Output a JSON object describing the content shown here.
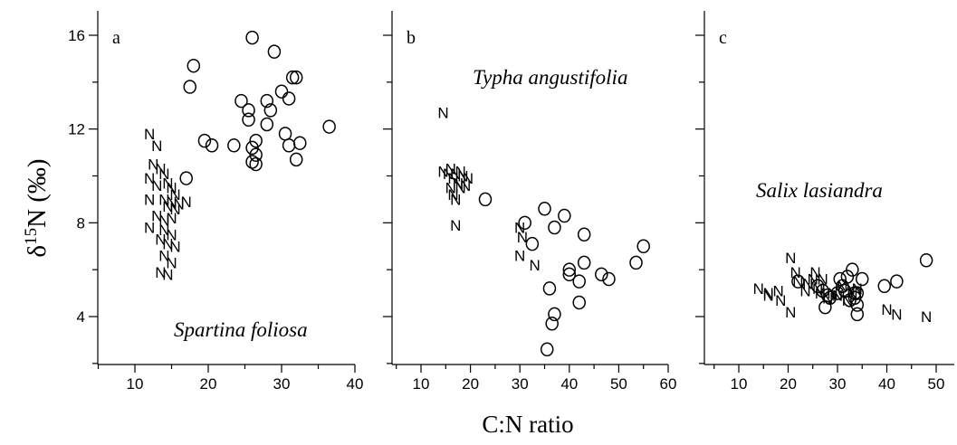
{
  "chart_data": {
    "type": "scatter",
    "ylabel": "δ15N (‰)",
    "xlabel": "C:N ratio",
    "ylim": [
      2,
      17
    ],
    "yticks": [
      4,
      8,
      12,
      16
    ],
    "panels": [
      {
        "letter": "a",
        "species": "Spartina foliosa",
        "xlim": [
          5,
          40
        ],
        "xticks": [
          10,
          20,
          30,
          40
        ],
        "series": [
          {
            "marker": "N",
            "points": [
              [
                12,
                11.8
              ],
              [
                13,
                11.3
              ],
              [
                12.5,
                10.5
              ],
              [
                13.5,
                10.3
              ],
              [
                14,
                10.1
              ],
              [
                12,
                9.9
              ],
              [
                13,
                9.6
              ],
              [
                14.5,
                9.7
              ],
              [
                15,
                9.5
              ],
              [
                15.5,
                9.2
              ],
              [
                12,
                9.0
              ],
              [
                14,
                9.0
              ],
              [
                14.5,
                8.7
              ],
              [
                15,
                8.9
              ],
              [
                15.5,
                8.6
              ],
              [
                16,
                8.8
              ],
              [
                17,
                8.9
              ],
              [
                13,
                8.3
              ],
              [
                14,
                8.1
              ],
              [
                15,
                8.2
              ],
              [
                12,
                7.8
              ],
              [
                14,
                7.7
              ],
              [
                15,
                7.5
              ],
              [
                13.5,
                7.3
              ],
              [
                14.5,
                7.1
              ],
              [
                15.5,
                7.0
              ],
              [
                14,
                6.6
              ],
              [
                15,
                6.3
              ],
              [
                13.5,
                5.9
              ],
              [
                14.5,
                5.8
              ]
            ]
          },
          {
            "marker": "O",
            "points": [
              [
                18,
                14.7
              ],
              [
                17.5,
                13.8
              ],
              [
                17,
                9.9
              ],
              [
                19.5,
                11.5
              ],
              [
                20.5,
                11.3
              ],
              [
                23.5,
                11.3
              ],
              [
                24.5,
                13.2
              ],
              [
                25.5,
                12.8
              ],
              [
                25.5,
                12.4
              ],
              [
                26,
                15.9
              ],
              [
                26.5,
                11.5
              ],
              [
                26,
                11.2
              ],
              [
                26.5,
                10.9
              ],
              [
                26,
                10.6
              ],
              [
                26.5,
                10.5
              ],
              [
                28,
                13.2
              ],
              [
                28,
                12.2
              ],
              [
                28.5,
                12.8
              ],
              [
                29,
                15.3
              ],
              [
                30,
                13.6
              ],
              [
                30.5,
                11.8
              ],
              [
                31,
                11.3
              ],
              [
                31,
                13.3
              ],
              [
                31.5,
                14.2
              ],
              [
                32,
                14.2
              ],
              [
                32,
                10.7
              ],
              [
                32.5,
                11.4
              ],
              [
                36.5,
                12.1
              ]
            ]
          }
        ]
      },
      {
        "letter": "b",
        "species": "Typha angustifolia",
        "xlim": [
          5,
          60
        ],
        "xticks": [
          10,
          20,
          30,
          40,
          50,
          60
        ],
        "series": [
          {
            "marker": "N",
            "points": [
              [
                14.5,
                12.7
              ],
              [
                14.5,
                10.2
              ],
              [
                15.5,
                10.1
              ],
              [
                16,
                10.3
              ],
              [
                16.5,
                9.9
              ],
              [
                17,
                10.1
              ],
              [
                17.5,
                9.7
              ],
              [
                18,
                10.2
              ],
              [
                18.5,
                10.0
              ],
              [
                19,
                9.6
              ],
              [
                19.5,
                9.9
              ],
              [
                16,
                9.5
              ],
              [
                16.5,
                9.2
              ],
              [
                17,
                9.0
              ],
              [
                18,
                9.5
              ],
              [
                17,
                7.9
              ],
              [
                30,
                7.8
              ],
              [
                30.5,
                7.4
              ],
              [
                30,
                6.6
              ],
              [
                33,
                6.2
              ]
            ]
          },
          {
            "marker": "O",
            "points": [
              [
                23,
                9.0
              ],
              [
                31,
                8.0
              ],
              [
                32.5,
                7.1
              ],
              [
                35,
                8.6
              ],
              [
                37,
                7.8
              ],
              [
                39,
                8.3
              ],
              [
                43,
                7.5
              ],
              [
                40,
                6.0
              ],
              [
                40,
                5.8
              ],
              [
                43,
                6.3
              ],
              [
                42,
                5.5
              ],
              [
                46.5,
                5.8
              ],
              [
                48,
                5.6
              ],
              [
                53.5,
                6.3
              ],
              [
                55,
                7.0
              ],
              [
                36,
                5.2
              ],
              [
                42,
                4.6
              ],
              [
                37,
                4.1
              ],
              [
                36.5,
                3.7
              ],
              [
                35.5,
                2.6
              ]
            ]
          }
        ]
      },
      {
        "letter": "c",
        "species": "Salix lasiandra",
        "xlim": [
          5,
          52
        ],
        "xticks": [
          10,
          20,
          30,
          40,
          50
        ],
        "series": [
          {
            "marker": "N",
            "points": [
              [
                14,
                5.2
              ],
              [
                16,
                4.9
              ],
              [
                16,
                5.0
              ],
              [
                18,
                5.1
              ],
              [
                18.5,
                4.7
              ],
              [
                20.5,
                6.5
              ],
              [
                20.5,
                4.2
              ],
              [
                21.5,
                5.9
              ],
              [
                22,
                5.5
              ],
              [
                23.5,
                5.1
              ],
              [
                24,
                5.4
              ],
              [
                25,
                5.6
              ],
              [
                25.5,
                5.9
              ],
              [
                26,
                5.2
              ],
              [
                26.5,
                5.0
              ],
              [
                27,
                5.6
              ],
              [
                28,
                4.8
              ],
              [
                29,
                5.0
              ],
              [
                30,
                4.9
              ],
              [
                31,
                5.3
              ],
              [
                32,
                4.7
              ],
              [
                33,
                5.0
              ],
              [
                34,
                5.2
              ],
              [
                40,
                4.3
              ],
              [
                42,
                4.1
              ],
              [
                48,
                4.0
              ]
            ]
          },
          {
            "marker": "O",
            "points": [
              [
                22,
                5.5
              ],
              [
                26,
                5.3
              ],
              [
                27,
                5.1
              ],
              [
                27.5,
                4.4
              ],
              [
                28,
                4.9
              ],
              [
                28.5,
                4.8
              ],
              [
                30,
                5.0
              ],
              [
                30.5,
                5.6
              ],
              [
                31,
                5.3
              ],
              [
                31.5,
                5.1
              ],
              [
                32,
                5.7
              ],
              [
                32.5,
                4.7
              ],
              [
                33,
                6.0
              ],
              [
                33.5,
                5.0
              ],
              [
                33.5,
                4.8
              ],
              [
                34,
                4.5
              ],
              [
                34,
                4.1
              ],
              [
                34,
                5.0
              ],
              [
                35,
                5.6
              ],
              [
                39.5,
                5.3
              ],
              [
                42,
                5.5
              ],
              [
                48,
                6.4
              ]
            ]
          }
        ]
      }
    ]
  }
}
